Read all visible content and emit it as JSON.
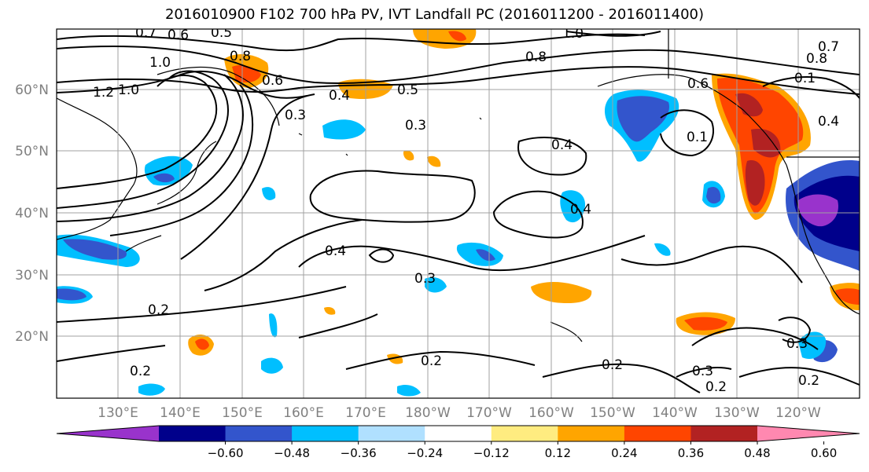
{
  "title": "2016010900 F102 700 hPa PV, IVT Landfall PC (2016011200 - 2016011400)",
  "map": {
    "lat_labels": [
      "60°N",
      "50°N",
      "40°N",
      "30°N",
      "20°N"
    ],
    "lon_labels": [
      "130°E",
      "140°E",
      "150°E",
      "160°E",
      "170°E",
      "180°W",
      "170°W",
      "160°W",
      "150°W",
      "140°W",
      "130°W",
      "120°W"
    ],
    "contour_labels": [
      "0.7",
      "0.6",
      "0.5",
      "1.0",
      "0.8",
      "1.0",
      "1.2",
      "0.6",
      "0.4",
      "0.5",
      "0.3",
      "0.3",
      "0.4",
      "0.1",
      "0.6",
      "0.4",
      "0.4",
      "0.3",
      "0.2",
      "0.2",
      "0.2",
      "0.2",
      "0.3",
      "0.3",
      "0.2",
      "0.2",
      "1.0",
      "0.8",
      "0.8",
      "0.7",
      "0.4",
      "0.1"
    ],
    "tick_color": "#808080",
    "grid_color": "#a0a0a0"
  },
  "colorbar": {
    "tick_labels": [
      "−0.60",
      "−0.48",
      "−0.36",
      "−0.24",
      "−0.12",
      "0.12",
      "0.24",
      "0.36",
      "0.48",
      "0.60"
    ],
    "colors": [
      "#9933cc",
      "#00008b",
      "#3355cc",
      "#00bfff",
      "#b0e0ff",
      "#ffffff",
      "#ffec80",
      "#ffa500",
      "#ff4500",
      "#b22222",
      "#ff88b0"
    ]
  }
}
